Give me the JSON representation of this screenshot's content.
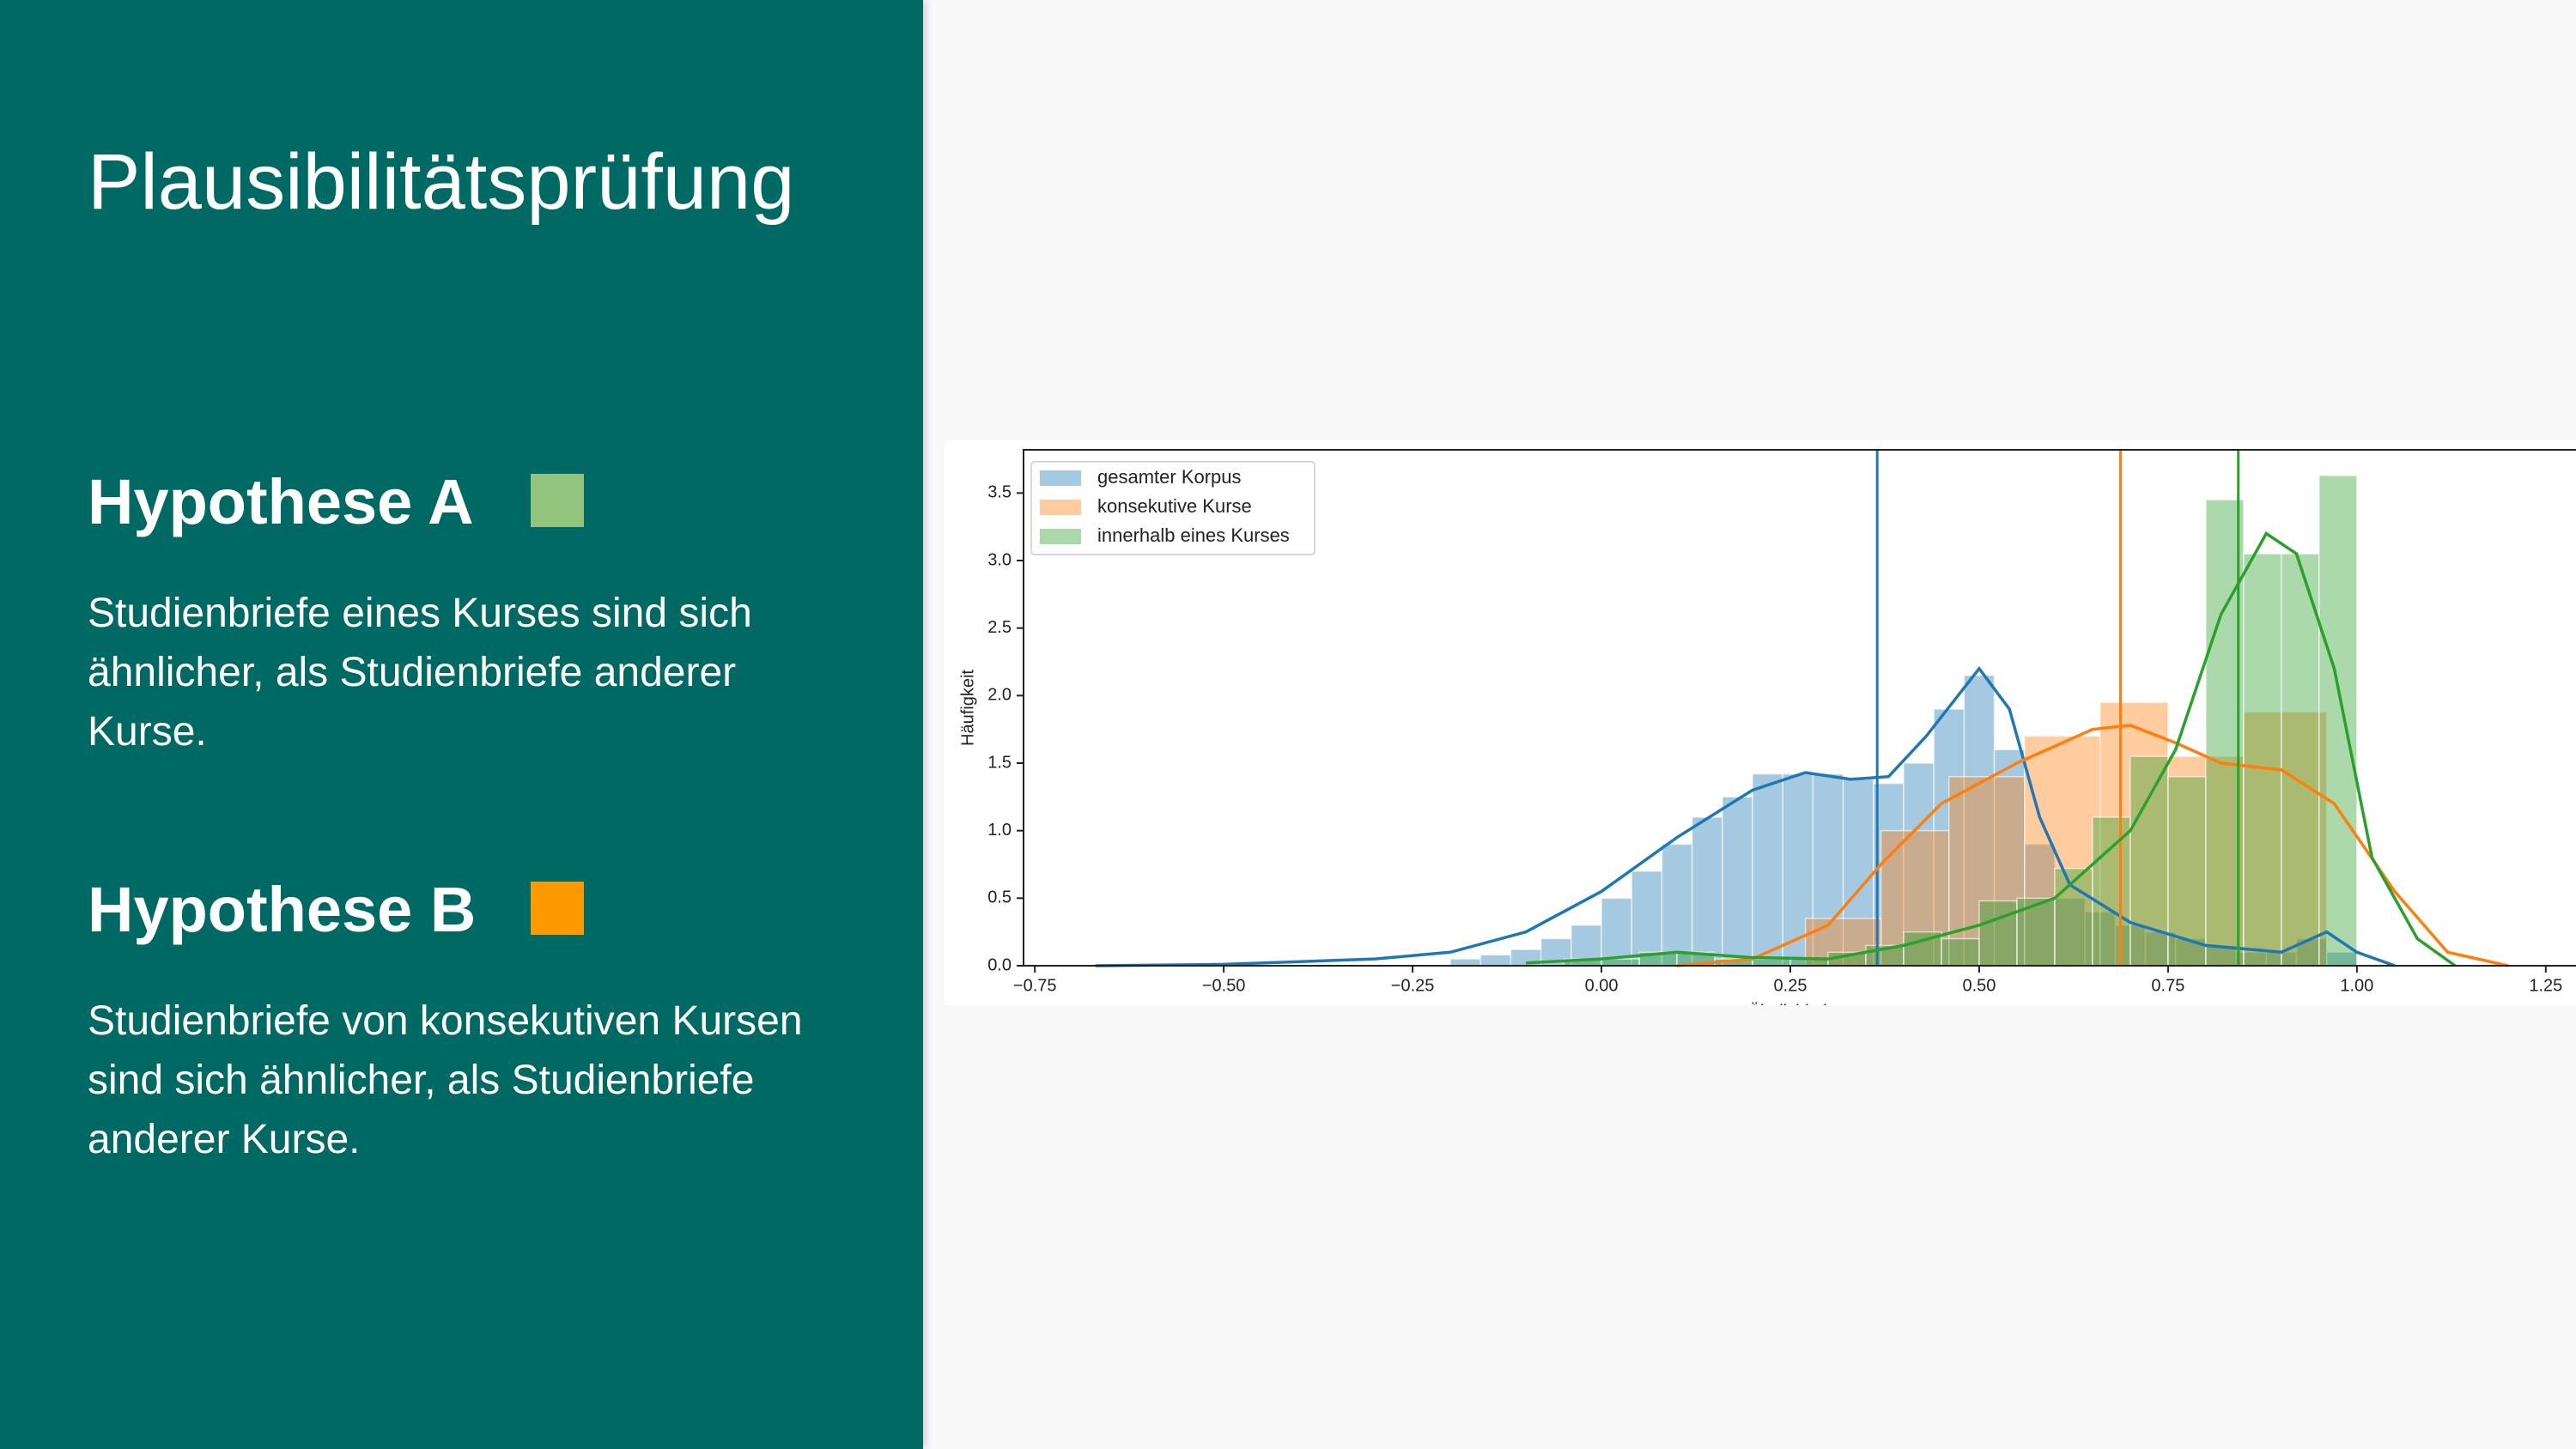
{
  "slide": {
    "title": "Plausibilitätsprüfung",
    "hypotheses": [
      {
        "title": "Hypothese A",
        "color": "#93c47d",
        "lines": [
          "Studienbriefe eines Kurses sind sich",
          "ähnlicher, als Studienbriefe anderer",
          "Kurse."
        ]
      },
      {
        "title": "Hypothese B",
        "color": "#ff9900",
        "lines": [
          "Studienbriefe von konsekutiven Kursen",
          "sind sich ähnlicher, als Studienbriefe",
          "anderer Kurse."
        ]
      }
    ]
  },
  "chart_data": {
    "type": "histogram",
    "xlabel": "Ähnlichkeit",
    "ylabel": "Häufigkeit",
    "legend": "upper left",
    "xlim": [
      -0.765,
      1.29
    ],
    "ylim": [
      0,
      3.82
    ],
    "xticks": [
      {
        "value": -0.75,
        "label": "−0.75"
      },
      {
        "value": -0.5,
        "label": "−0.50"
      },
      {
        "value": -0.25,
        "label": "−0.25"
      },
      {
        "value": 0,
        "label": "0.00"
      },
      {
        "value": 0.25,
        "label": "0.25"
      },
      {
        "value": 0.5,
        "label": "0.50"
      },
      {
        "value": 0.75,
        "label": "0.75"
      },
      {
        "value": 1,
        "label": "1.00"
      },
      {
        "value": 1.25,
        "label": "1.25"
      }
    ],
    "yticks": [
      {
        "value": 0,
        "label": "0.0"
      },
      0.5,
      {
        "value": 1,
        "label": "1.0"
      },
      1.5,
      {
        "value": 2,
        "label": "2.0"
      },
      2.5,
      {
        "value": 3,
        "label": "3.0"
      },
      3.5
    ],
    "series": [
      {
        "name": "gesamter Korpus",
        "color": "#1f77b4",
        "vline": 0.365,
        "bins": [
          -0.2,
          -0.16,
          -0.12,
          -0.08,
          -0.04,
          0,
          0.04,
          0.08,
          0.12,
          0.16,
          0.2,
          0.24,
          0.28,
          0.32,
          0.36,
          0.4,
          0.44,
          0.48,
          0.52,
          0.56,
          0.6,
          0.64,
          0.68,
          0.72,
          0.76,
          0.8,
          0.84,
          0.88,
          0.92,
          0.96,
          1.0
        ],
        "values": [
          0.05,
          0.08,
          0.12,
          0.2,
          0.3,
          0.5,
          0.7,
          0.9,
          1.1,
          1.25,
          1.42,
          1.42,
          1.42,
          1.38,
          1.35,
          1.5,
          1.9,
          2.15,
          1.6,
          0.9,
          0.5,
          0.4,
          0.3,
          0.25,
          0.2,
          0.15,
          0.1,
          0.1,
          0.2,
          0.1
        ],
        "kde": {
          "x": [
            -0.67,
            -0.5,
            -0.3,
            -0.2,
            -0.1,
            0,
            0.1,
            0.2,
            0.27,
            0.33,
            0.38,
            0.43,
            0.5,
            0.54,
            0.58,
            0.62,
            0.7,
            0.8,
            0.9,
            0.96,
            1.0,
            1.05
          ],
          "values": [
            0,
            0.01,
            0.05,
            0.1,
            0.25,
            0.55,
            0.95,
            1.3,
            1.43,
            1.38,
            1.4,
            1.7,
            2.2,
            1.9,
            1.1,
            0.6,
            0.32,
            0.15,
            0.1,
            0.25,
            0.1,
            0
          ]
        }
      },
      {
        "name": "konsekutive Kurse",
        "color": "#ff7f0e",
        "vline": 0.687,
        "bins": [
          0.27,
          0.37,
          0.46,
          0.56,
          0.66,
          0.75,
          0.85,
          0.96
        ],
        "values": [
          0.35,
          1.0,
          1.4,
          1.7,
          1.95,
          1.55,
          1.88
        ],
        "kde": {
          "x": [
            0.1,
            0.2,
            0.3,
            0.37,
            0.45,
            0.55,
            0.65,
            0.7,
            0.76,
            0.82,
            0.9,
            0.97,
            1.05,
            1.12,
            1.2
          ],
          "values": [
            0,
            0.05,
            0.3,
            0.75,
            1.2,
            1.5,
            1.75,
            1.78,
            1.65,
            1.5,
            1.45,
            1.2,
            0.55,
            0.1,
            0
          ]
        }
      },
      {
        "name": "innerhalb eines Kurses",
        "color": "#2ca02c",
        "vline": 0.843,
        "bins": [
          -0.05,
          0,
          0.05,
          0.1,
          0.15,
          0.2,
          0.25,
          0.3,
          0.35,
          0.4,
          0.45,
          0.5,
          0.55,
          0.6,
          0.65,
          0.7,
          0.75,
          0.8,
          0.85,
          0.9,
          0.95,
          1.0
        ],
        "values": [
          0.05,
          0.05,
          0.1,
          0.1,
          0.05,
          0.05,
          0.05,
          0.1,
          0.15,
          0.25,
          0.2,
          0.48,
          0.5,
          0.72,
          1.1,
          1.55,
          1.4,
          3.45,
          3.05,
          3.05,
          3.63
        ],
        "kde": {
          "x": [
            -0.1,
            0,
            0.1,
            0.2,
            0.3,
            0.4,
            0.5,
            0.6,
            0.7,
            0.76,
            0.82,
            0.88,
            0.92,
            0.97,
            1.02,
            1.08,
            1.13
          ],
          "values": [
            0.02,
            0.05,
            0.1,
            0.06,
            0.05,
            0.15,
            0.3,
            0.5,
            1.0,
            1.6,
            2.6,
            3.2,
            3.05,
            2.2,
            0.8,
            0.2,
            0
          ]
        }
      }
    ]
  }
}
